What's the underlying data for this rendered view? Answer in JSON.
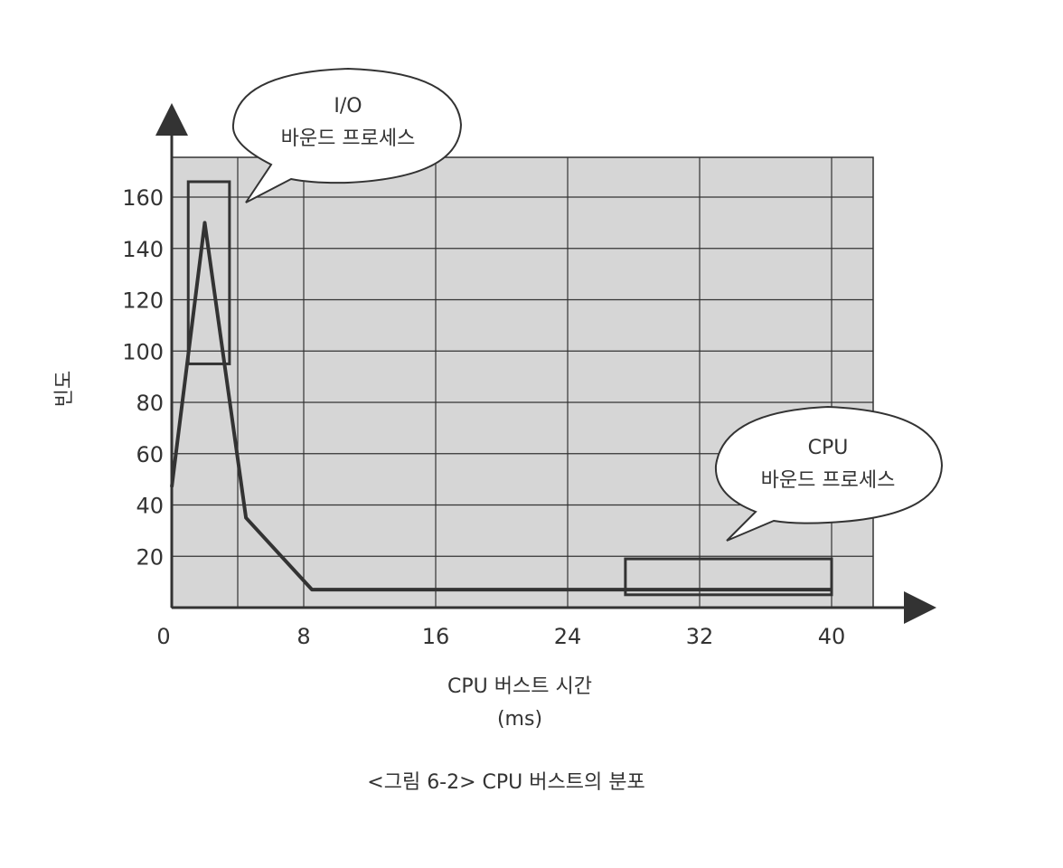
{
  "chart_data": {
    "type": "line",
    "title": "",
    "xlabel": "CPU 버스트 시간",
    "xlabel_unit": "(ms)",
    "ylabel": "빈도",
    "x_ticks": [
      "0",
      "8",
      "16",
      "24",
      "32",
      "40"
    ],
    "y_ticks": [
      "20",
      "40",
      "60",
      "80",
      "100",
      "120",
      "140",
      "160"
    ],
    "xlim": [
      0,
      42
    ],
    "ylim": [
      0,
      175
    ],
    "grid": true,
    "series": [
      {
        "x": [
          0,
          2,
          4.5,
          8.5,
          40
        ],
        "y": [
          47,
          150,
          35,
          7,
          7
        ]
      }
    ],
    "highlight_boxes": [
      {
        "x0": 1,
        "x1": 3.5,
        "y0": 95,
        "y1": 166
      },
      {
        "x0": 27.5,
        "x1": 40,
        "y0": 5,
        "y1": 19
      }
    ],
    "annotations": [
      {
        "lines": [
          "I/O",
          "바운드 프로세스"
        ]
      },
      {
        "lines": [
          "CPU",
          "바운드 프로세스"
        ]
      }
    ],
    "caption": "<그림 6-2> CPU 버스트의 분포"
  },
  "colors": {
    "plot_bg": "#d6d6d6",
    "grid": "#333333",
    "line": "#333333",
    "text": "#333333"
  }
}
